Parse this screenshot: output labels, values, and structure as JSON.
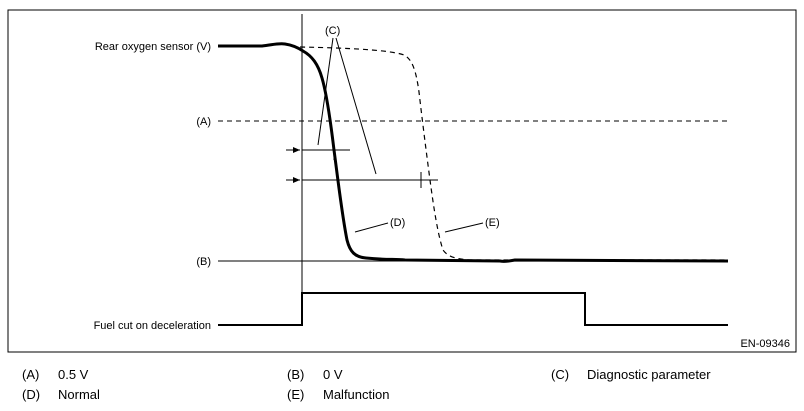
{
  "diagram": {
    "labels": {
      "rear_oxygen_sensor": "Rear oxygen sensor (V)",
      "a_marker": "(A)",
      "b_marker": "(B)",
      "fuel_cut": "Fuel cut on deceleration",
      "c_callout": "(C)",
      "d_callout": "(D)",
      "e_callout": "(E)",
      "figure_id": "EN-09346"
    }
  },
  "legend": [
    {
      "key": "(A)",
      "text": "0.5 V"
    },
    {
      "key": "(B)",
      "text": "0 V"
    },
    {
      "key": "(C)",
      "text": "Diagnostic parameter"
    },
    {
      "key": "(D)",
      "text": "Normal"
    },
    {
      "key": "(E)",
      "text": "Malfunction"
    }
  ]
}
